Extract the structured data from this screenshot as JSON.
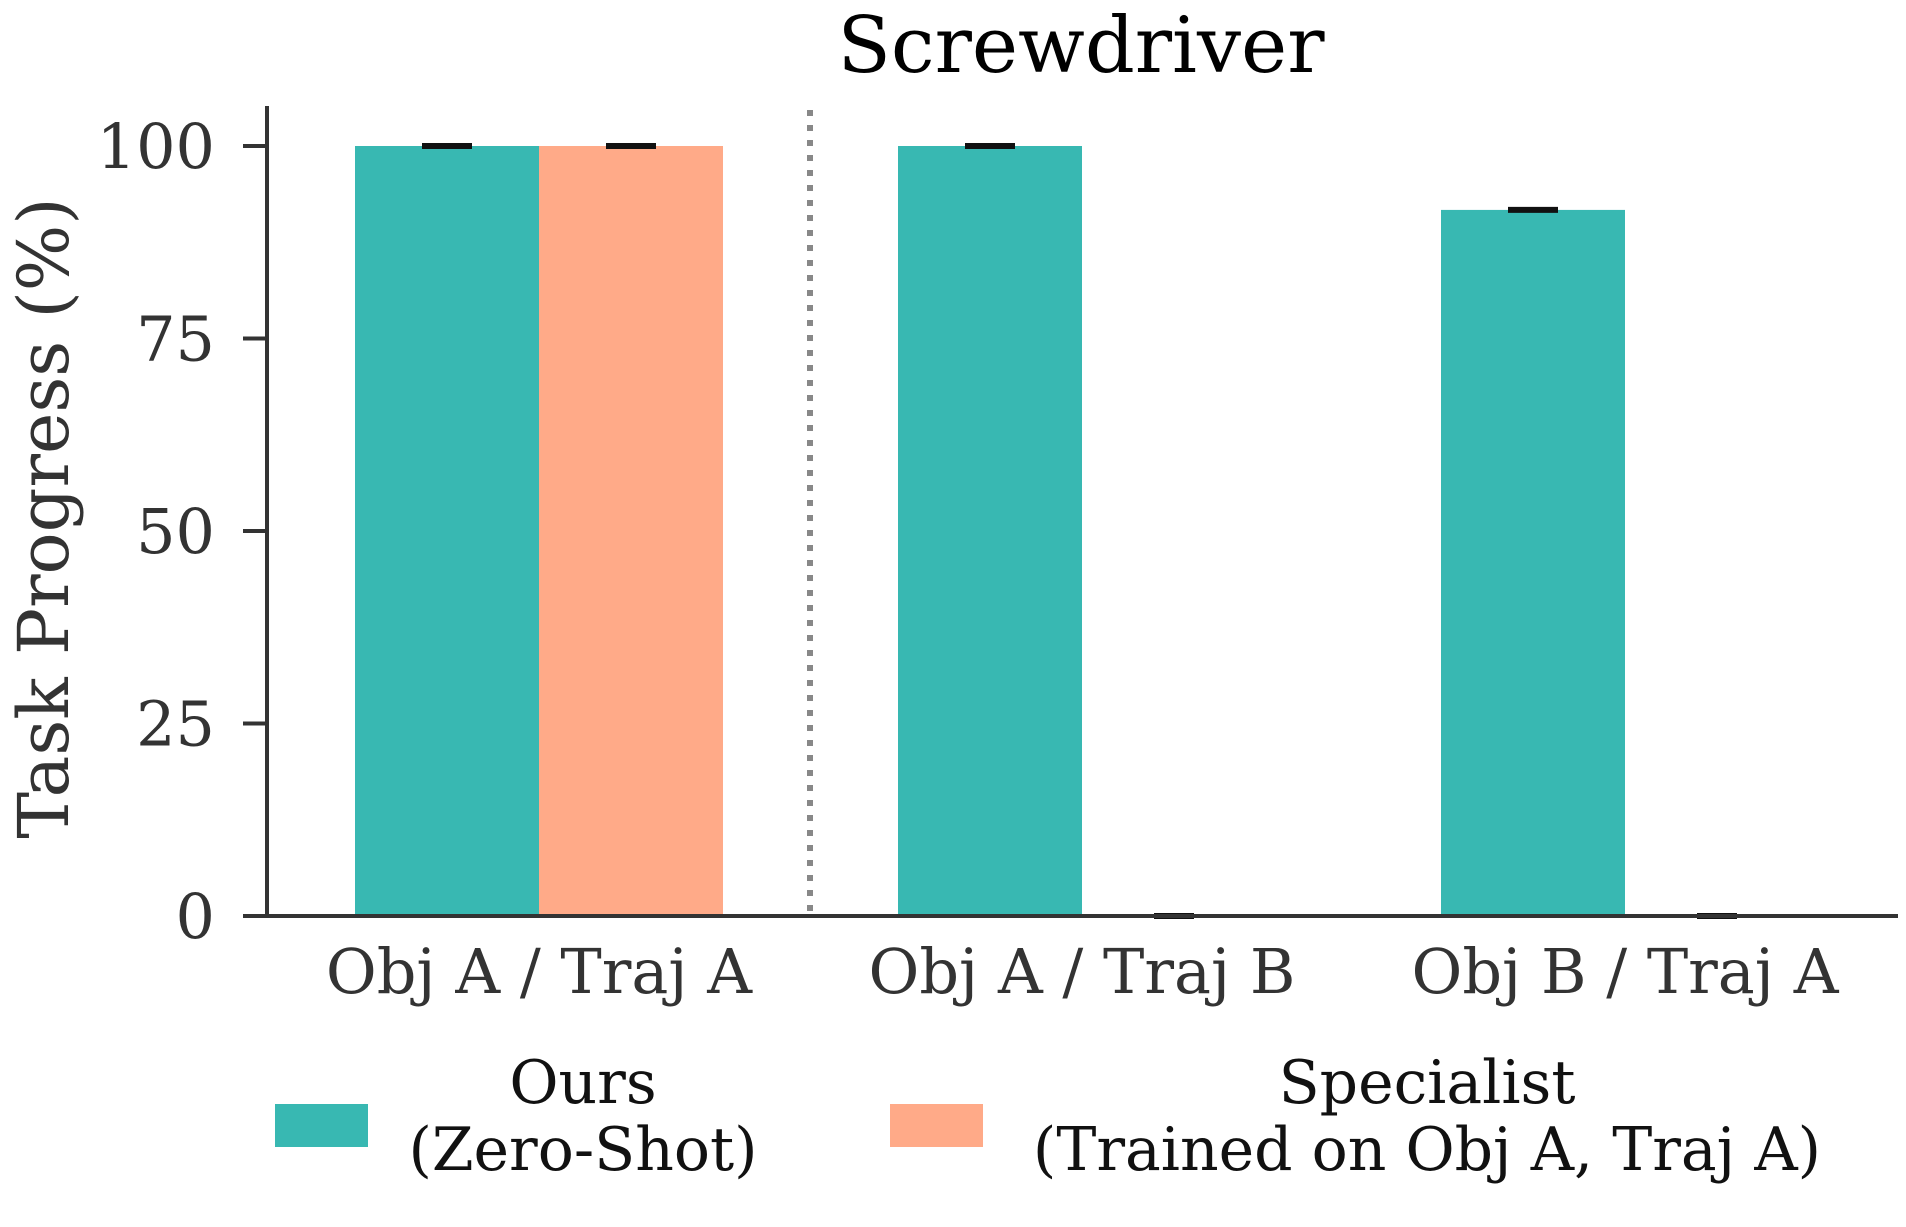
{
  "chart_data": {
    "type": "bar",
    "title": "Screwdriver",
    "xlabel": "",
    "ylabel": "Task Progress (%)",
    "ylim": [
      0,
      100
    ],
    "yticks": [
      "0",
      "25",
      "50",
      "75",
      "100"
    ],
    "categories": [
      "Obj A / Traj A",
      "Obj A / Traj B",
      "Obj B / Traj A"
    ],
    "series": [
      {
        "name": "Ours\n(Zero-Shot)",
        "legend_lines": [
          "Ours",
          "(Zero-Shot)"
        ],
        "color": "#38b8b2",
        "values": [
          100,
          100,
          91.7
        ],
        "errors": [
          0,
          0,
          0
        ]
      },
      {
        "name": "Specialist\n(Trained on Obj A, Traj A)",
        "legend_lines": [
          "Specialist",
          "(Trained on Obj A, Traj A)"
        ],
        "color": "#ffaa88",
        "values": [
          100,
          0,
          0
        ],
        "errors": [
          0,
          0,
          0
        ]
      }
    ],
    "separator": "dotted vertical line between first and second category",
    "legend_position": "bottom",
    "grid": false
  }
}
